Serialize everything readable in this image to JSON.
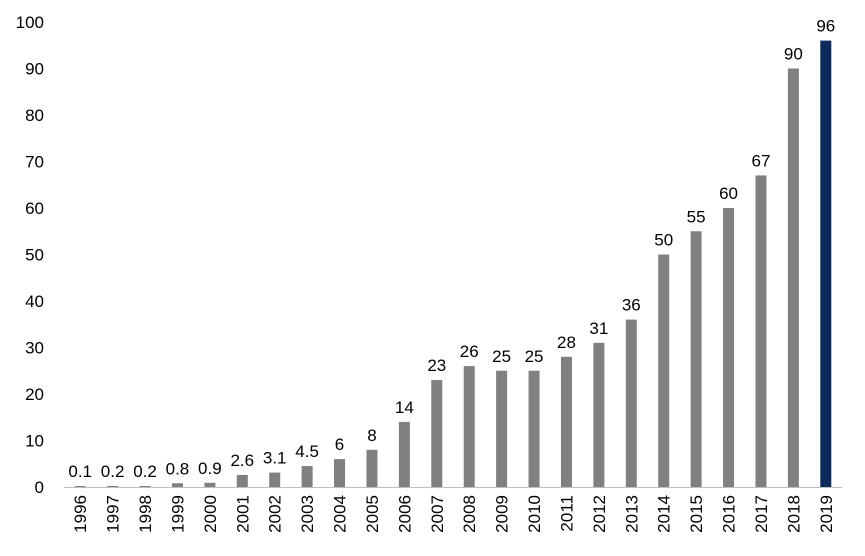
{
  "chart_data": {
    "type": "bar",
    "title": "",
    "xlabel": "",
    "ylabel": "",
    "ylim": [
      0,
      100
    ],
    "yticks": [
      0,
      10,
      20,
      30,
      40,
      50,
      60,
      70,
      80,
      90,
      100
    ],
    "grid": false,
    "legend": "none",
    "categories": [
      "1996",
      "1997",
      "1998",
      "1999",
      "2000",
      "2001",
      "2002",
      "2003",
      "2004",
      "2005",
      "2006",
      "2007",
      "2008",
      "2009",
      "2010",
      "2011",
      "2012",
      "2013",
      "2014",
      "2015",
      "2016",
      "2017",
      "2018",
      "2019"
    ],
    "values": [
      0.1,
      0.2,
      0.2,
      0.8,
      0.9,
      2.6,
      3.1,
      4.5,
      6,
      8,
      14,
      23,
      26,
      25,
      25,
      28,
      31,
      36,
      50,
      55,
      60,
      67,
      90,
      96
    ],
    "colors": {
      "default_bar": "#808080",
      "highlight_bar": "#0c2a5b"
    },
    "highlight_category": "2019"
  }
}
